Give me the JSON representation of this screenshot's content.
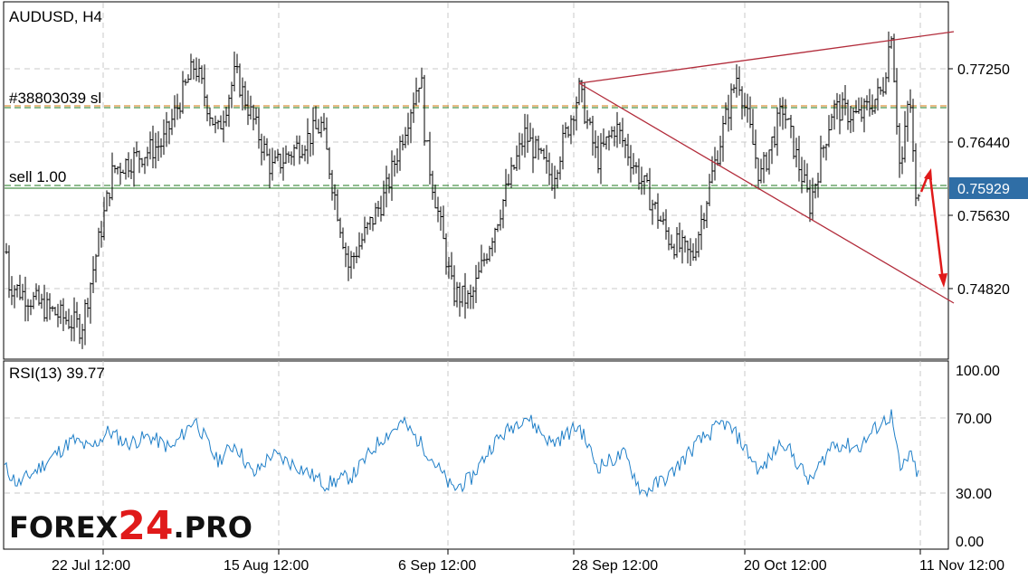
{
  "chart_data": [
    {
      "type": "ohlc",
      "title": "AUDUSD, H4",
      "ylim": [
        0.7395,
        0.78
      ],
      "y_ticks": [
        "0.77250",
        "0.76440",
        "0.75630",
        "0.74820"
      ],
      "x_ticks": [
        "22 Jul 12:00",
        "15 Aug 12:00",
        "6 Sep 12:00",
        "28 Sep 12:00",
        "20 Oct 12:00",
        "11 Nov 12:00"
      ],
      "current_price": "0.75929",
      "levels": [
        {
          "label": "#38803039 sl",
          "price": 0.7683
        },
        {
          "label": "sell 1.00",
          "price": 0.7592
        }
      ],
      "trendlines": "upper and lower lines diverging from a late-September high",
      "arrow": "red forecast arrow pointing down",
      "path": [
        [
          0,
          0.76
        ],
        [
          10,
          0.748
        ],
        [
          45,
          0.7455
        ],
        [
          90,
          0.743
        ],
        [
          125,
          0.761
        ],
        [
          180,
          0.764
        ],
        [
          215,
          0.773
        ],
        [
          240,
          0.765
        ],
        [
          260,
          0.772
        ],
        [
          300,
          0.761
        ],
        [
          355,
          0.766
        ],
        [
          385,
          0.75
        ],
        [
          425,
          0.758
        ],
        [
          465,
          0.772
        ],
        [
          470,
          0.764
        ],
        [
          500,
          0.747
        ],
        [
          520,
          0.746
        ],
        [
          545,
          0.754
        ],
        [
          580,
          0.765
        ],
        [
          610,
          0.76
        ],
        [
          640,
          0.77
        ],
        [
          660,
          0.762
        ],
        [
          680,
          0.766
        ],
        [
          740,
          0.753
        ],
        [
          765,
          0.751
        ],
        [
          800,
          0.766
        ],
        [
          815,
          0.772
        ],
        [
          840,
          0.76
        ],
        [
          865,
          0.768
        ],
        [
          895,
          0.757
        ],
        [
          920,
          0.768
        ],
        [
          950,
          0.767
        ],
        [
          975,
          0.77
        ],
        [
          985,
          0.777
        ],
        [
          995,
          0.76
        ],
        [
          1005,
          0.77
        ],
        [
          1012,
          0.757
        ],
        [
          1015,
          0.7592
        ]
      ]
    },
    {
      "type": "line",
      "title": "RSI(13) 39.77",
      "ylim": [
        0,
        100
      ],
      "y_ticks": [
        "100.00",
        "70.00",
        "30.00",
        "0.00"
      ],
      "levels": [
        70,
        30
      ],
      "path": [
        [
          0,
          48
        ],
        [
          20,
          35
        ],
        [
          45,
          45
        ],
        [
          80,
          60
        ],
        [
          100,
          55
        ],
        [
          120,
          65
        ],
        [
          140,
          58
        ],
        [
          165,
          62
        ],
        [
          190,
          55
        ],
        [
          215,
          72
        ],
        [
          240,
          48
        ],
        [
          260,
          58
        ],
        [
          280,
          40
        ],
        [
          300,
          52
        ],
        [
          330,
          45
        ],
        [
          360,
          35
        ],
        [
          390,
          40
        ],
        [
          420,
          60
        ],
        [
          445,
          70
        ],
        [
          470,
          55
        ],
        [
          500,
          32
        ],
        [
          520,
          38
        ],
        [
          545,
          58
        ],
        [
          580,
          74
        ],
        [
          610,
          58
        ],
        [
          640,
          68
        ],
        [
          660,
          45
        ],
        [
          690,
          52
        ],
        [
          710,
          30
        ],
        [
          740,
          40
        ],
        [
          770,
          58
        ],
        [
          800,
          70
        ],
        [
          815,
          62
        ],
        [
          840,
          42
        ],
        [
          865,
          60
        ],
        [
          895,
          36
        ],
        [
          920,
          58
        ],
        [
          950,
          56
        ],
        [
          970,
          68
        ],
        [
          985,
          74
        ],
        [
          995,
          42
        ],
        [
          1005,
          52
        ],
        [
          1015,
          40
        ]
      ]
    }
  ],
  "brand": {
    "part1": "FOREX",
    "part2": "24",
    "part3": ".PRO"
  },
  "colors": {
    "bars": "#000000",
    "rsi": "#1f7fc8",
    "trend": "#b22c3b",
    "level_red": "#d47a12",
    "level_green": "#1f7a1f",
    "arrow": "#e01a1a",
    "price_tag_bg": "#2f6ea6"
  }
}
